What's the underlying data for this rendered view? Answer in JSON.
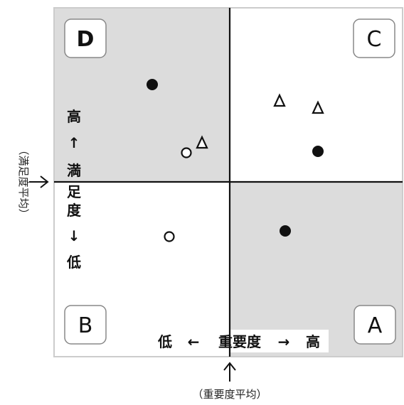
{
  "quadrants": {
    "top_left": "D",
    "top_right": "C",
    "bottom_left": "B",
    "bottom_right": "A"
  },
  "x_axis": {
    "low": "低",
    "left_arrow": "←",
    "name": "重要度",
    "right_arrow": "→",
    "high": "高"
  },
  "y_axis": {
    "high": "高",
    "up_arrow": "↑",
    "name_1": "満",
    "name_2": "足",
    "name_3": "度",
    "down_arrow": "↓",
    "low": "低"
  },
  "references": {
    "x_label": "（重要度平均）",
    "y_label": "（満足度平均）"
  },
  "colors": {
    "shaded_quadrant": "#dcdcdc",
    "frame": "#cccccc",
    "line": "#111111",
    "marker": "#111111"
  },
  "markers": [
    {
      "shape": "filled-circle",
      "quadrant": "D"
    },
    {
      "shape": "open-circle",
      "quadrant": "D"
    },
    {
      "shape": "open-triangle",
      "quadrant": "D"
    },
    {
      "shape": "open-triangle",
      "quadrant": "C"
    },
    {
      "shape": "open-triangle",
      "quadrant": "C"
    },
    {
      "shape": "filled-circle",
      "quadrant": "C"
    },
    {
      "shape": "open-circle",
      "quadrant": "B"
    },
    {
      "shape": "filled-circle",
      "quadrant": "A"
    }
  ]
}
